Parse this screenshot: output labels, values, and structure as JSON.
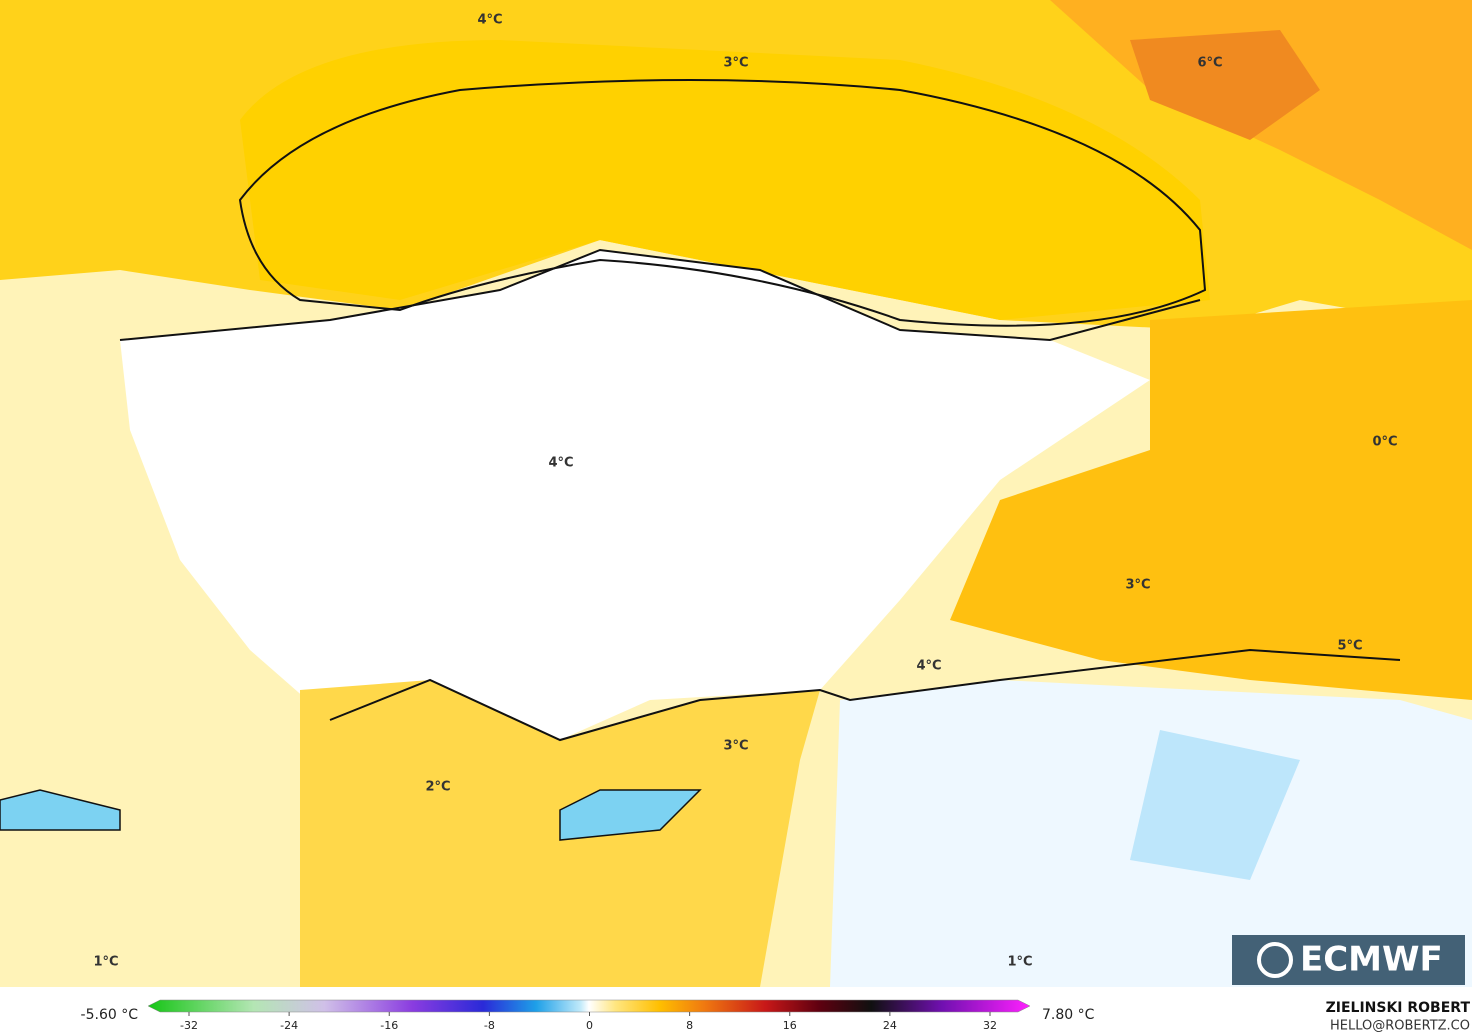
{
  "map_labels": [
    "4°C",
    "3°C",
    "6°C",
    "0°C",
    "4°C",
    "3°C",
    "5°C",
    "4°C",
    "3°C",
    "2°C",
    "1°C",
    "1°C"
  ],
  "colorbar": {
    "min": "-5.60 °C",
    "max": "7.80 °C",
    "ticks": [
      -32,
      -24,
      -16,
      -8,
      0,
      8,
      16,
      24,
      32
    ]
  },
  "credit": {
    "author": "ZIELINSKI ROBERT",
    "email": "HELLO@ROBERTZ.CO"
  },
  "logo": "ECMWF"
}
